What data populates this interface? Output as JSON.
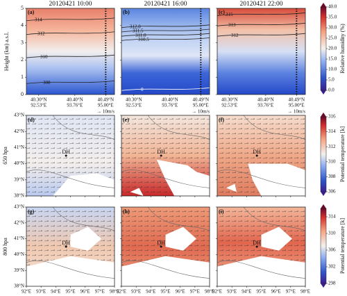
{
  "chart_data": {
    "type": "heatmap",
    "top_row": {
      "ylabel": "Height (km) a.s.l.",
      "ylim": [
        0,
        5
      ],
      "yticks": [
        0,
        1,
        2,
        3,
        4,
        5
      ],
      "xticks": [
        {
          "lat": "40.30°N",
          "lon": "92.53°E"
        },
        {
          "lat": "40.40°N",
          "lon": "93.76°E"
        },
        {
          "lat": "40.49°N",
          "lon": "95.00°E"
        }
      ],
      "panels": [
        {
          "label": "(a)",
          "title": "20120421 10:00",
          "contour_labels": [
            "314",
            "312",
            "310",
            "308"
          ]
        },
        {
          "label": "(b)",
          "title": "20120421 16:00",
          "contour_labels": [
            "312.0",
            "311.5",
            "311.0",
            "310.5",
            "0"
          ]
        },
        {
          "label": "(c)",
          "title": "20120421 22:00",
          "contour_labels": [
            "315",
            "313",
            "312"
          ]
        }
      ],
      "colorbar": {
        "label": "Relative humidity (%)",
        "ylim": [
          0,
          40
        ],
        "yticks": [
          {
            "value": 0,
            "label": "0.0"
          },
          {
            "value": 5,
            "label": "5.0"
          },
          {
            "value": 10,
            "label": "10.0"
          },
          {
            "value": 15,
            "label": "15.0"
          },
          {
            "value": 20,
            "label": "20.0"
          },
          {
            "value": 25,
            "label": "25.0"
          },
          {
            "value": 30,
            "label": "30.0"
          },
          {
            "value": 35,
            "label": "35.0"
          },
          {
            "value": 40,
            "label": "40.0"
          }
        ]
      }
    },
    "map_axes": {
      "xlim": [
        92,
        98
      ],
      "xticks": [
        {
          "value": 92,
          "label": "92°E"
        },
        {
          "value": 93,
          "label": "93°E"
        },
        {
          "value": 94,
          "label": "94°E"
        },
        {
          "value": 95,
          "label": "95°E"
        },
        {
          "value": 96,
          "label": "96°E"
        },
        {
          "value": 97,
          "label": "97°E"
        },
        {
          "value": 98,
          "label": "98°E"
        }
      ],
      "ylim": [
        38,
        43
      ],
      "yticks": [
        {
          "value": 38,
          "label": "38°N"
        },
        {
          "value": 39,
          "label": "39°N"
        },
        {
          "value": 40,
          "label": "40°N"
        },
        {
          "value": 41,
          "label": "41°N"
        },
        {
          "value": 42,
          "label": "42°N"
        },
        {
          "value": 43,
          "label": "43°N"
        }
      ],
      "site": "DH",
      "wind_key": "→ 10m/s"
    },
    "middle_row": {
      "ylabel": "650 hpa",
      "panels": [
        {
          "label": "(d)"
        },
        {
          "label": "(e)"
        },
        {
          "label": "(f)"
        }
      ],
      "colorbar": {
        "label": "Potential temperature [k]",
        "ylim": [
          306,
          316
        ],
        "yticks": [
          306,
          308,
          310,
          312,
          314,
          316
        ]
      }
    },
    "bottom_row": {
      "ylabel": "800 hpa",
      "panels": [
        {
          "label": "(g)"
        },
        {
          "label": "(h)"
        },
        {
          "label": "(i)"
        }
      ],
      "colorbar": {
        "label": "Potential temperature [k]",
        "ylim": [
          298,
          316
        ],
        "yticks": [
          298,
          302,
          306,
          310,
          314
        ]
      }
    }
  }
}
